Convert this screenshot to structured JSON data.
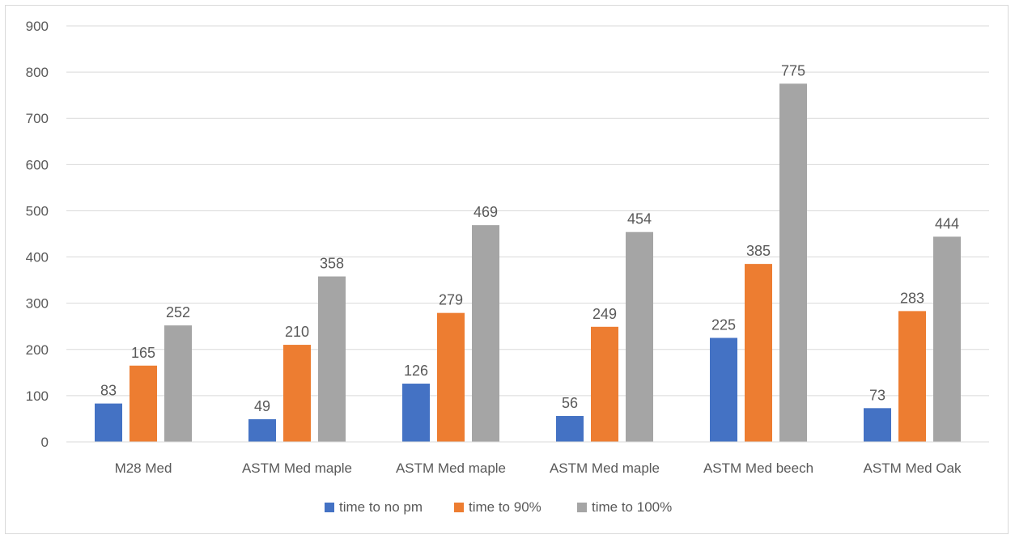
{
  "chart_data": {
    "type": "bar",
    "title": "",
    "xlabel": "",
    "ylabel": "",
    "ylim": [
      0,
      900
    ],
    "yticks": [
      0,
      100,
      200,
      300,
      400,
      500,
      600,
      700,
      800,
      900
    ],
    "grid": true,
    "legend_position": "bottom",
    "categories": [
      "M28 Med",
      "ASTM Med maple",
      "ASTM Med maple",
      "ASTM Med maple",
      "ASTM Med beech",
      "ASTM Med Oak"
    ],
    "series": [
      {
        "name": "time to no pm",
        "color": "#4472c4",
        "values": [
          83,
          49,
          126,
          56,
          225,
          73
        ]
      },
      {
        "name": "time to 90%",
        "color": "#ed7d31",
        "values": [
          165,
          210,
          279,
          249,
          385,
          283
        ]
      },
      {
        "name": "time to 100%",
        "color": "#a5a5a5",
        "values": [
          252,
          358,
          469,
          454,
          775,
          444
        ]
      }
    ]
  }
}
